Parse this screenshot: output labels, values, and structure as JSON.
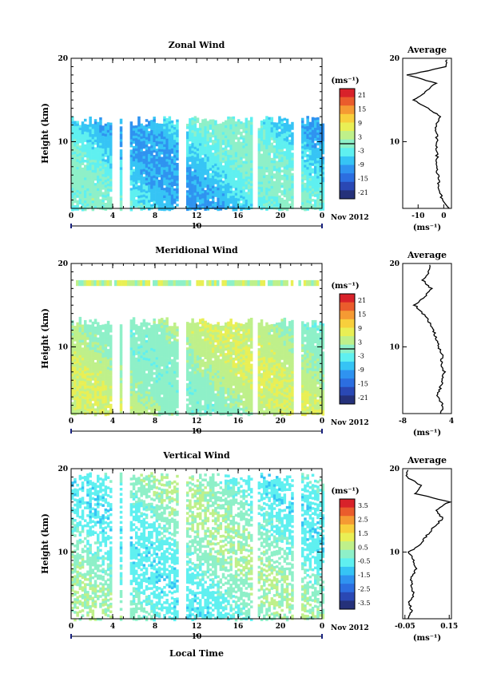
{
  "figure": {
    "xlabel": "Local Time",
    "date_label": "Nov 2012",
    "date_day": "10",
    "ylabel": "Height (km)",
    "unit_label": "(ms⁻¹)"
  },
  "palette": [
    "#25317a",
    "#2a48b4",
    "#2c6ee0",
    "#2f93f0",
    "#36c4f5",
    "#5ff0f0",
    "#8ef0c8",
    "#bff08a",
    "#e9ef55",
    "#f8cf3c",
    "#f59a33",
    "#ea5c2c",
    "#d8222a"
  ],
  "chart_data": [
    {
      "type": "heatmap",
      "title": "Zonal Wind",
      "xlabel": "Local Time",
      "ylabel": "Height (km)",
      "xlim": [
        0,
        24
      ],
      "ylim": [
        2,
        20
      ],
      "xticks": [
        "0",
        "4",
        "8",
        "12",
        "16",
        "20",
        "0"
      ],
      "yticks": [
        "10",
        "20"
      ],
      "colorbar": {
        "label": "(ms⁻¹)",
        "ticks": [
          "21",
          "15",
          "9",
          "3",
          "-3",
          "-9",
          "-15",
          "-21"
        ],
        "range": [
          -24,
          24
        ]
      },
      "data_top_km": 12.5,
      "extra_layer_km": null,
      "gap_hours": [
        4.2,
        5.2,
        10.5,
        17.5,
        21.5
      ],
      "value_range": [
        -10,
        4
      ],
      "average_profile": {
        "title": "Average",
        "xticks": [
          "-10",
          "0"
        ],
        "xlim": [
          -16,
          3
        ],
        "xlabel": "(ms⁻¹)",
        "height_km": [
          2,
          3,
          4,
          5,
          6,
          7,
          8,
          9,
          10,
          11,
          12,
          13,
          14,
          15,
          16,
          17,
          18,
          19
        ],
        "values": [
          1.8,
          -0.5,
          -1.5,
          -2.0,
          -2.3,
          -2.8,
          -2.5,
          -2.9,
          -2.6,
          -2.8,
          -3.2,
          -1.5,
          -6.0,
          -12.0,
          -7.0,
          -3.0,
          -14.0,
          1.0
        ]
      }
    },
    {
      "type": "heatmap",
      "title": "Meridional Wind",
      "xlabel": "Local Time",
      "ylabel": "Height (km)",
      "xlim": [
        0,
        24
      ],
      "ylim": [
        2,
        20
      ],
      "xticks": [
        "0",
        "4",
        "8",
        "12",
        "16",
        "20",
        "0"
      ],
      "yticks": [
        "10",
        "20"
      ],
      "colorbar": {
        "label": "(ms⁻¹)",
        "ticks": [
          "21",
          "15",
          "9",
          "3",
          "-3",
          "-9",
          "-15",
          "-21"
        ],
        "range": [
          -24,
          24
        ]
      },
      "data_top_km": 13.0,
      "extra_layer_km": [
        17.3,
        18.0
      ],
      "gap_hours": [
        4.2,
        5.2,
        10.5,
        17.5,
        21.5
      ],
      "value_range": [
        -1,
        9
      ],
      "average_profile": {
        "title": "Average",
        "xticks": [
          "-8",
          "4"
        ],
        "xlim": [
          -8,
          4
        ],
        "xlabel": "(ms⁻¹)",
        "height_km": [
          2,
          3,
          4,
          5,
          6,
          7,
          8,
          9,
          10,
          11,
          12,
          13,
          14,
          15,
          16,
          17,
          18,
          19
        ],
        "values": [
          1.5,
          1.8,
          0.5,
          1.2,
          1.8,
          2.2,
          1.5,
          1.7,
          0.8,
          0.3,
          -0.5,
          -1.5,
          -3.0,
          -5.0,
          -2.5,
          -1.0,
          -3.0,
          -1.5
        ]
      }
    },
    {
      "type": "heatmap",
      "title": "Vertical Wind",
      "xlabel": "Local Time",
      "ylabel": "Height (km)",
      "xlim": [
        0,
        24
      ],
      "ylim": [
        2,
        20
      ],
      "xticks": [
        "0",
        "4",
        "8",
        "12",
        "16",
        "20",
        "0"
      ],
      "yticks": [
        "10",
        "20"
      ],
      "colorbar": {
        "label": "(ms⁻¹)",
        "ticks": [
          "3.5",
          "2.5",
          "1.5",
          "0.5",
          "-0.5",
          "-1.5",
          "-2.5",
          "-3.5"
        ],
        "range": [
          -4,
          4
        ]
      },
      "data_top_km": 19.0,
      "extra_layer_km": null,
      "gap_hours": [
        4.2,
        5.2,
        10.5,
        17.5,
        21.5
      ],
      "value_range": [
        -0.8,
        0.9
      ],
      "average_profile": {
        "title": "Average",
        "xticks": [
          "-0.05",
          "0.15"
        ],
        "xlim": [
          -0.06,
          0.16
        ],
        "xlabel": "(ms⁻¹)",
        "height_km": [
          2,
          3,
          4,
          5,
          6,
          7,
          8,
          9,
          10,
          11,
          12,
          13,
          14,
          15,
          16,
          17,
          18,
          19
        ],
        "values": [
          -0.04,
          -0.02,
          -0.03,
          -0.01,
          -0.02,
          -0.02,
          0.0,
          -0.01,
          -0.03,
          0.02,
          0.05,
          0.08,
          0.12,
          0.09,
          0.15,
          0.0,
          0.02,
          -0.04
        ]
      }
    }
  ]
}
